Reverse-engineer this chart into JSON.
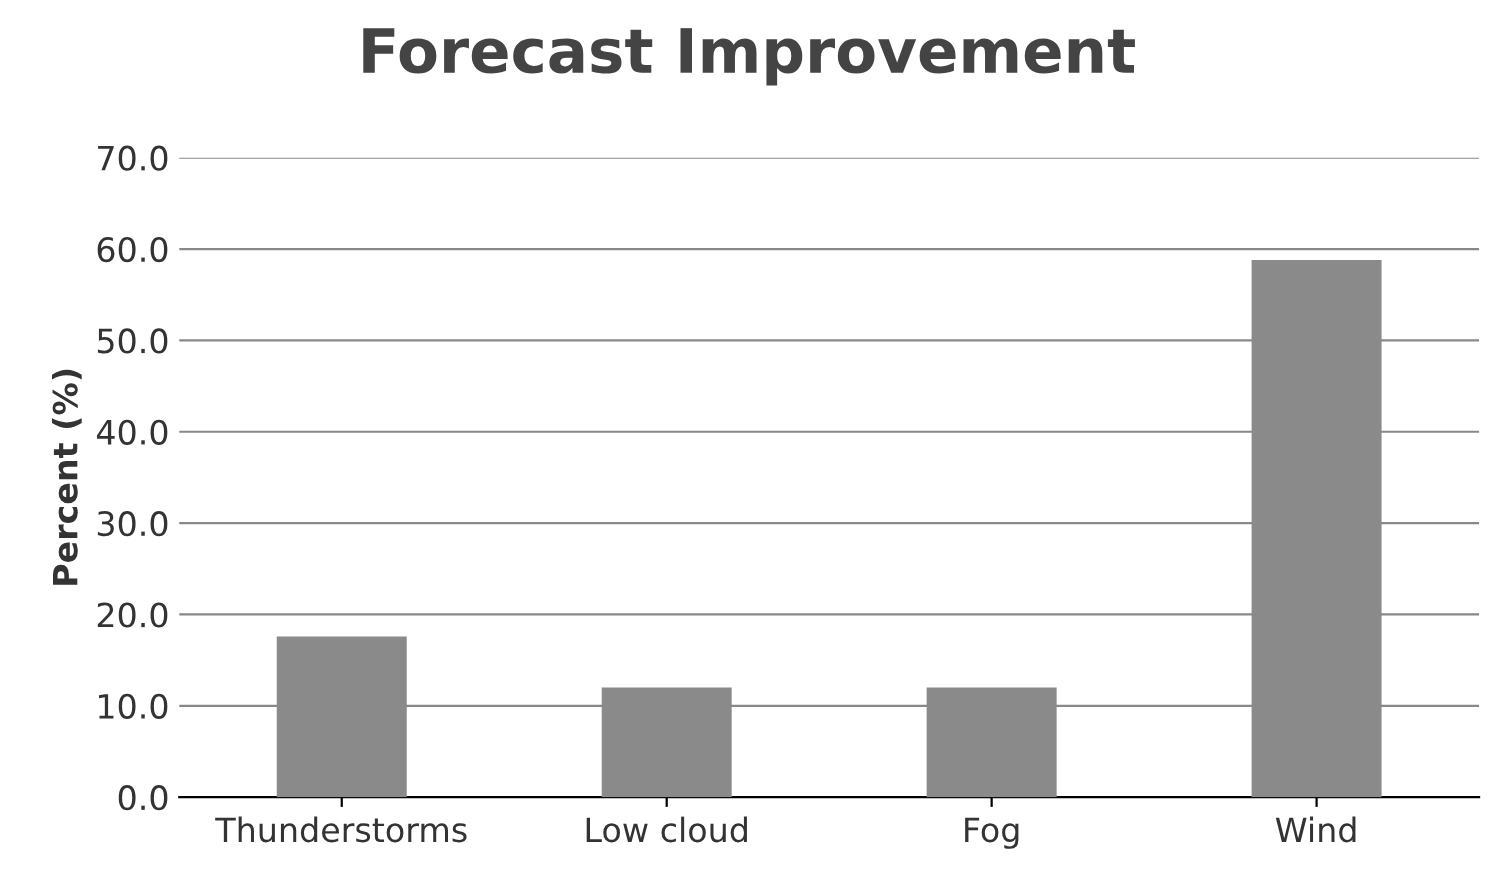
{
  "chart_data": {
    "type": "bar",
    "title": "Forecast Improvement",
    "ylabel": "Percent (%)",
    "categories": [
      "Thunderstorms",
      "Low cloud",
      "Fog",
      "Wind"
    ],
    "values": [
      17.6,
      12.0,
      12.0,
      58.8
    ],
    "color": "#8a8a8a",
    "ylim": [
      0,
      70
    ],
    "yticks": [
      {
        "value": 0,
        "label": "0.0"
      },
      {
        "value": 10,
        "label": "10.0"
      },
      {
        "value": 20,
        "label": "20.0"
      },
      {
        "value": 30,
        "label": "30.0"
      },
      {
        "value": 40,
        "label": "40.0"
      },
      {
        "value": 50,
        "label": "50.0"
      },
      {
        "value": 60,
        "label": "60.0"
      },
      {
        "value": 70,
        "label": "70.0"
      }
    ],
    "grid": "y"
  }
}
